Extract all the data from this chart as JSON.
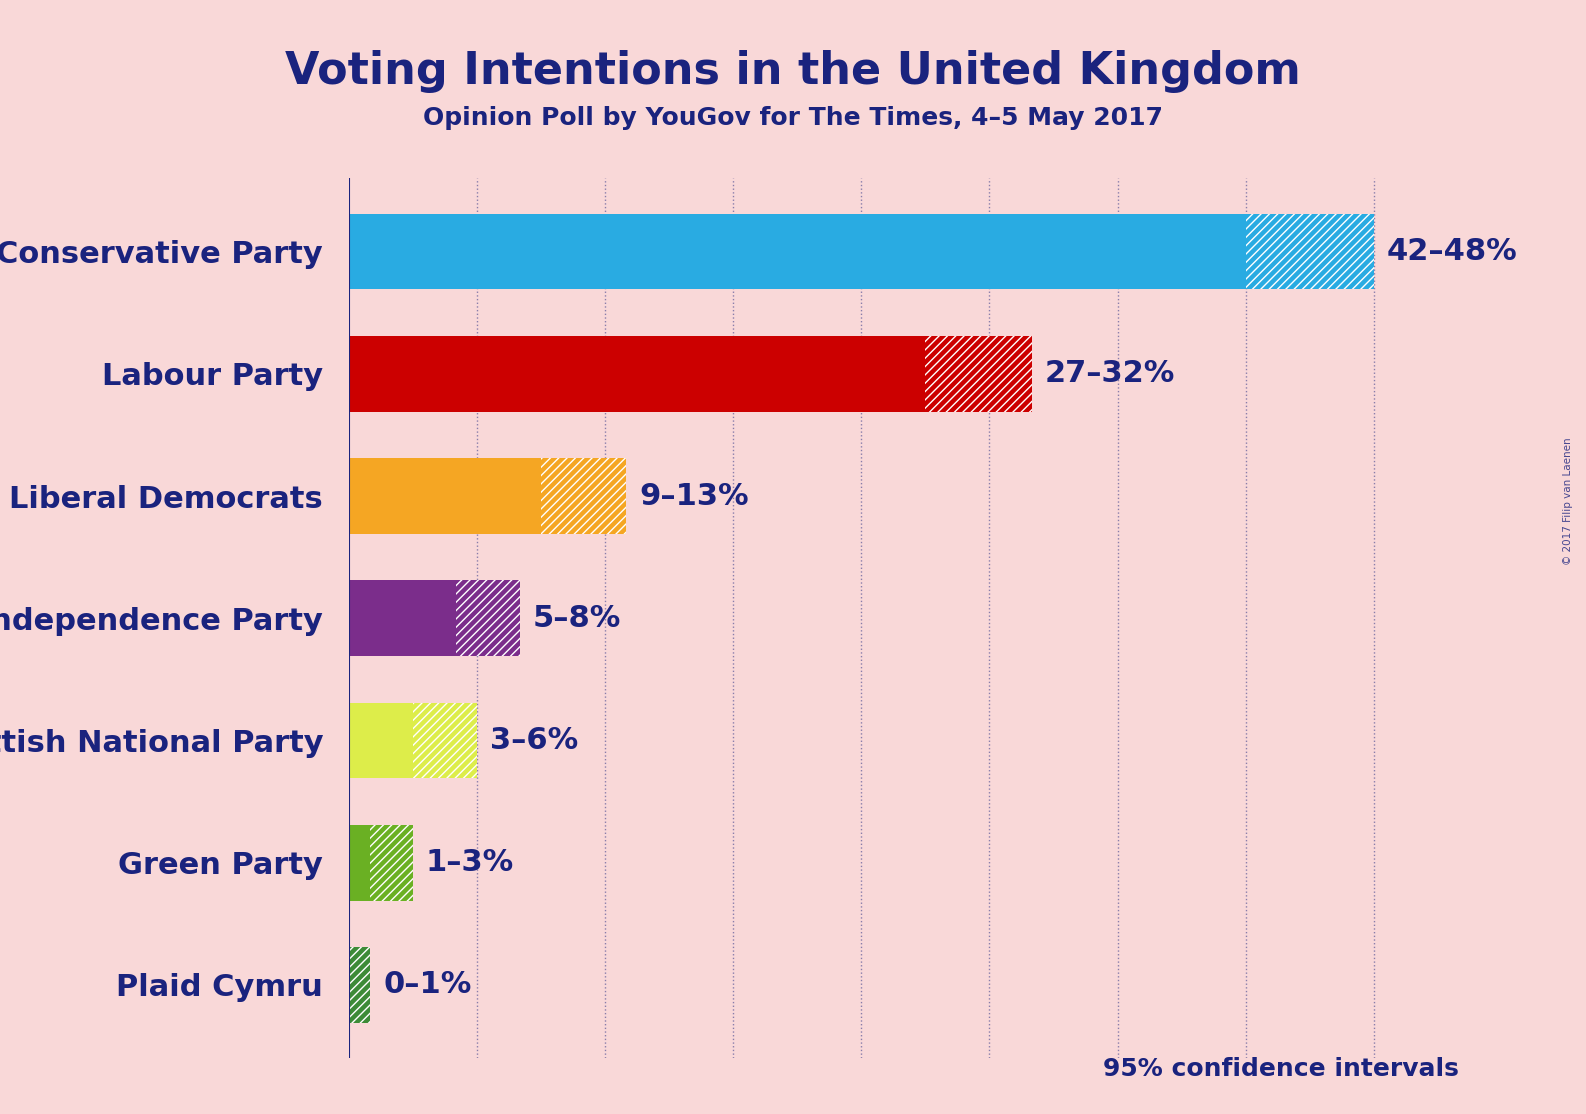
{
  "title": "Voting Intentions in the United Kingdom",
  "subtitle": "Opinion Poll by YouGov for The Times, 4–5 May 2017",
  "watermark": "© 2017 Filip van Laenen",
  "parties": [
    "Conservative Party",
    "Labour Party",
    "Liberal Democrats",
    "UK Independence Party",
    "Scottish National Party",
    "Green Party",
    "Plaid Cymru"
  ],
  "low": [
    42,
    27,
    9,
    5,
    3,
    1,
    0
  ],
  "high": [
    48,
    32,
    13,
    8,
    6,
    3,
    1
  ],
  "colors": [
    "#29ABE2",
    "#CC0000",
    "#F5A623",
    "#7B2D8B",
    "#DDED4A",
    "#6AB023",
    "#3D8B37"
  ],
  "labels": [
    "42–48%",
    "27–32%",
    "9–13%",
    "5–8%",
    "3–6%",
    "1–3%",
    "0–1%"
  ],
  "background_color": "#F9D8D8",
  "text_color": "#1A237E",
  "confidence_text": "95% confidence intervals",
  "xlim": [
    0,
    52
  ],
  "bar_height": 0.62
}
